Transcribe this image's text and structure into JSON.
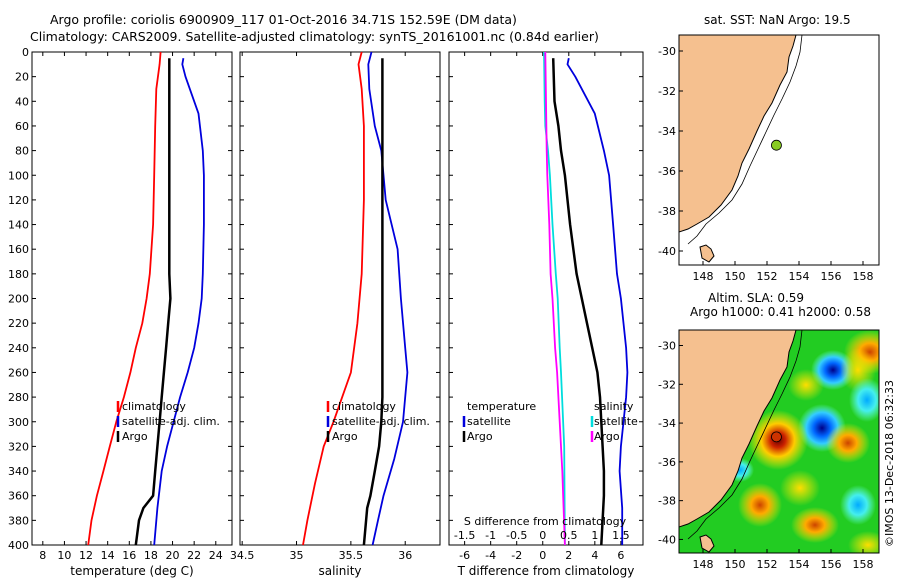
{
  "header": {
    "line1": "Argo profile: coriolis 6900909_117 01-Oct-2016 34.71S 152.59E (DM data)",
    "line2": "Climatology: CARS2009. Satellite-adjusted climatology: synTS_20161001.nc (0.84d earlier)"
  },
  "colors": {
    "climatology": "#ff0000",
    "satellite": "#0000dd",
    "argo": "#000000",
    "s_satellite": "#00dddd",
    "s_argo": "#ff00ff",
    "land": "#f5c08f",
    "sea": "#ffffff"
  },
  "chart_data": [
    {
      "type": "line",
      "title": "",
      "xlabel": "temperature (deg C)",
      "ylabel": "",
      "xlim": [
        7,
        25.5
      ],
      "ylim": [
        400,
        0
      ],
      "xticks": [
        "8",
        "10",
        "12",
        "14",
        "16",
        "18",
        "20",
        "22",
        "24"
      ],
      "xtick_values": [
        8,
        10,
        12,
        14,
        16,
        18,
        20,
        22,
        24
      ],
      "yticks": [
        "0",
        "20",
        "40",
        "60",
        "80",
        "100",
        "120",
        "140",
        "160",
        "180",
        "200",
        "220",
        "240",
        "260",
        "280",
        "300",
        "320",
        "340",
        "360",
        "380",
        "400"
      ],
      "ytick_values": [
        0,
        20,
        40,
        60,
        80,
        100,
        120,
        140,
        160,
        180,
        200,
        220,
        240,
        260,
        280,
        300,
        320,
        340,
        360,
        380,
        400
      ],
      "legend": [
        "climatology",
        "satellite-adj. clim.",
        "Argo"
      ],
      "series": [
        {
          "name": "climatology",
          "color": "#ff0000",
          "x": [
            18.9,
            18.8,
            18.5,
            18.4,
            18.3,
            18.2,
            17.9,
            17.6,
            17.2,
            16.6,
            16.1,
            15.5,
            14.8,
            14.2,
            13.6,
            13.0,
            12.5,
            12.2
          ],
          "y": [
            0,
            10,
            30,
            60,
            100,
            140,
            180,
            200,
            220,
            240,
            260,
            280,
            300,
            320,
            340,
            360,
            380,
            400
          ]
        },
        {
          "name": "satellite-adj. clim.",
          "color": "#0000dd",
          "x": [
            21.0,
            20.9,
            21.2,
            22.4,
            22.8,
            22.9,
            22.9,
            22.8,
            22.7,
            22.4,
            22.0,
            21.4,
            20.7,
            20.1,
            19.5,
            19.0,
            18.6,
            18.3
          ],
          "y": [
            5,
            10,
            20,
            50,
            80,
            100,
            140,
            180,
            200,
            220,
            240,
            260,
            280,
            300,
            320,
            340,
            370,
            400
          ]
        },
        {
          "name": "Argo",
          "color": "#000000",
          "x": [
            19.7,
            19.7,
            19.7,
            19.7,
            19.8,
            19.6,
            19.4,
            19.2,
            19.0,
            18.8,
            18.6,
            18.4,
            18.2,
            17.3,
            16.9,
            16.6
          ],
          "y": [
            5,
            60,
            110,
            180,
            200,
            220,
            240,
            260,
            280,
            300,
            320,
            340,
            360,
            370,
            380,
            400
          ]
        }
      ]
    },
    {
      "type": "line",
      "title": "",
      "xlabel": "salinity",
      "ylabel": "",
      "xlim": [
        34.48,
        36.32
      ],
      "ylim": [
        400,
        0
      ],
      "xticks": [
        "34.5",
        "35",
        "35.5",
        "36"
      ],
      "xtick_values": [
        34.5,
        35,
        35.5,
        36
      ],
      "legend": [
        "climatology",
        "satellite-adj. clim.",
        "Argo"
      ],
      "series": [
        {
          "name": "climatology",
          "color": "#ff0000",
          "x": [
            35.6,
            35.57,
            35.6,
            35.62,
            35.62,
            35.6,
            35.56,
            35.5,
            35.42,
            35.34,
            35.25,
            35.17,
            35.1,
            35.06
          ],
          "y": [
            0,
            10,
            30,
            60,
            120,
            180,
            220,
            260,
            280,
            300,
            320,
            350,
            380,
            400
          ]
        },
        {
          "name": "satellite-adj. clim.",
          "color": "#0000dd",
          "x": [
            35.69,
            35.66,
            35.67,
            35.72,
            35.78,
            35.82,
            35.93,
            35.96,
            36.0,
            36.02,
            35.98,
            35.9,
            35.8,
            35.75,
            35.7
          ],
          "y": [
            0,
            10,
            30,
            60,
            80,
            120,
            160,
            200,
            240,
            260,
            300,
            330,
            360,
            380,
            400
          ]
        },
        {
          "name": "Argo",
          "color": "#000000",
          "x": [
            35.79,
            35.79,
            35.79,
            35.79,
            35.79,
            35.78,
            35.76,
            35.72,
            35.68,
            35.65,
            35.64,
            35.62
          ],
          "y": [
            5,
            100,
            200,
            260,
            280,
            300,
            320,
            340,
            360,
            370,
            380,
            400
          ]
        }
      ]
    },
    {
      "type": "line",
      "title": "S difference from climatology",
      "xlabel": "T difference from climatology",
      "ylabel": "",
      "xlim": [
        -7.2,
        7.7
      ],
      "ylim": [
        400,
        0
      ],
      "xticks": [
        "-6",
        "-4",
        "-2",
        "0",
        "2",
        "4",
        "6"
      ],
      "xtick_values": [
        -6,
        -4,
        -2,
        0,
        2,
        4,
        6
      ],
      "top_xticks": [
        "-1.5",
        "-1",
        "-0.5",
        "0",
        "0.5",
        "1",
        "1.5"
      ],
      "top_xtick_values": [
        -1.5,
        -1,
        -0.5,
        0,
        0.5,
        1,
        1.5
      ],
      "legend": [
        "temperature",
        "satellite",
        "Argo",
        "salinity",
        "satellite",
        "Argo"
      ],
      "series": [
        {
          "name": "T satellite",
          "color": "#0000dd",
          "x": [
            2.0,
            1.9,
            2.5,
            4.0,
            4.7,
            5.1,
            5.4,
            5.7,
            6.0,
            6.2,
            6.4,
            6.5,
            6.4,
            6.2,
            6.0,
            5.9,
            6.1,
            6.1
          ],
          "y": [
            5,
            10,
            20,
            50,
            80,
            100,
            140,
            180,
            200,
            220,
            240,
            260,
            280,
            300,
            320,
            340,
            370,
            400
          ]
        },
        {
          "name": "T Argo",
          "color": "#000000",
          "x": [
            0.8,
            0.9,
            1.2,
            1.4,
            1.7,
            2.1,
            2.6,
            3.0,
            3.4,
            3.8,
            4.2,
            4.4,
            4.5,
            4.6,
            4.7,
            4.7,
            4.5
          ],
          "y": [
            5,
            40,
            60,
            80,
            100,
            140,
            180,
            200,
            220,
            240,
            260,
            280,
            300,
            320,
            340,
            360,
            400
          ]
        },
        {
          "name": "S satellite",
          "color": "#00dddd",
          "x": [
            0.1,
            0.15,
            0.2,
            0.4,
            0.55,
            0.75,
            1.0,
            1.15,
            1.3,
            1.4,
            1.65,
            1.7
          ],
          "y": [
            0,
            40,
            60,
            80,
            100,
            140,
            180,
            200,
            240,
            260,
            320,
            400
          ]
        },
        {
          "name": "S Argo",
          "color": "#ff00ff",
          "x": [
            0.2,
            0.25,
            0.3,
            0.35,
            0.5,
            0.6,
            0.75,
            0.95,
            1.1,
            1.3,
            1.5,
            1.7
          ],
          "y": [
            0,
            40,
            80,
            100,
            140,
            180,
            200,
            240,
            260,
            300,
            340,
            400
          ]
        }
      ]
    }
  ],
  "maps": {
    "top": {
      "title": "sat. SST: NaN Argo: 19.5",
      "yticks": [
        "-30",
        "-32",
        "-34",
        "-36",
        "-38",
        "-40"
      ],
      "ytick_values": [
        -30,
        -32,
        -34,
        -36,
        -38,
        -40
      ],
      "xticks": [
        "148",
        "150",
        "152",
        "154",
        "156",
        "158"
      ],
      "xtick_values": [
        148,
        150,
        152,
        154,
        156,
        158
      ],
      "argo_lon": 152.59,
      "argo_lat": -34.71,
      "marker_color": "#88cc22"
    },
    "bottom": {
      "title1": "Altim. SLA: 0.59",
      "title2": "Argo h1000: 0.41 h2000: 0.58",
      "yticks": [
        "-30",
        "-32",
        "-34",
        "-36",
        "-38",
        "-40"
      ],
      "ytick_values": [
        -30,
        -32,
        -34,
        -36,
        -38,
        -40
      ],
      "xticks": [
        "148",
        "150",
        "152",
        "154",
        "156",
        "158"
      ],
      "xtick_values": [
        148,
        150,
        152,
        154,
        156,
        158
      ],
      "argo_lon": 152.59,
      "argo_lat": -34.71,
      "marker_color": "#cc3300"
    }
  },
  "watermark": "©IMOS 13-Dec-2018 06:32:33"
}
